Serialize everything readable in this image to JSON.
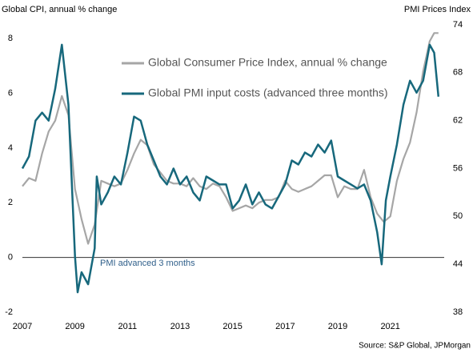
{
  "chart_data": {
    "type": "line",
    "y_label": "Global CPI, annual % change",
    "y2_label": "PMI Prices Index",
    "annotation": "PMI advanced 3 months",
    "source": "Source: S&P Global, JPMorgan",
    "xlim": [
      2007,
      2023.05
    ],
    "xticks": [
      2007,
      2009,
      2011,
      2013,
      2015,
      2017,
      2019,
      2021
    ],
    "ylim": [
      -2,
      8.5
    ],
    "yticks": [
      -2,
      0,
      2,
      4,
      6,
      8
    ],
    "y2lim": [
      38,
      74
    ],
    "y2ticks": [
      38,
      44,
      50,
      56,
      62,
      68,
      74
    ],
    "series": [
      {
        "name": "Global Consumer Price Index, annual % change",
        "color": "#a6a6a6",
        "axis": "y",
        "x": [
          2007,
          2007.25,
          2007.5,
          2007.75,
          2008,
          2008.25,
          2008.5,
          2008.75,
          2009,
          2009.25,
          2009.5,
          2009.75,
          2010,
          2010.25,
          2010.5,
          2010.75,
          2011,
          2011.25,
          2011.5,
          2011.75,
          2012,
          2012.25,
          2012.5,
          2012.75,
          2013,
          2013.25,
          2013.5,
          2013.75,
          2014,
          2014.25,
          2014.5,
          2014.75,
          2015,
          2015.25,
          2015.5,
          2015.75,
          2016,
          2016.25,
          2016.5,
          2016.75,
          2017,
          2017.25,
          2017.5,
          2017.75,
          2018,
          2018.25,
          2018.5,
          2018.75,
          2019,
          2019.25,
          2019.5,
          2019.75,
          2020,
          2020.25,
          2020.5,
          2020.75,
          2021,
          2021.25,
          2021.5,
          2021.75,
          2022,
          2022.25,
          2022.5,
          2022.67,
          2022.83
        ],
        "values": [
          2.6,
          2.9,
          2.8,
          3.8,
          4.6,
          5.0,
          5.9,
          5.2,
          2.5,
          1.4,
          0.5,
          1.2,
          2.8,
          2.7,
          2.6,
          2.7,
          3.2,
          3.8,
          4.3,
          4.1,
          3.4,
          3.1,
          2.8,
          2.7,
          2.7,
          2.6,
          2.9,
          2.6,
          2.5,
          2.7,
          2.6,
          2.2,
          1.7,
          1.8,
          1.9,
          1.8,
          2.0,
          2.1,
          2.1,
          2.2,
          2.8,
          2.5,
          2.4,
          2.5,
          2.6,
          2.8,
          3.0,
          3.0,
          2.2,
          2.6,
          2.5,
          2.5,
          3.2,
          2.2,
          1.6,
          1.3,
          1.5,
          2.8,
          3.6,
          4.2,
          5.3,
          6.8,
          7.9,
          8.2,
          8.2
        ]
      },
      {
        "name": "Global PMI input costs (advanced three months)",
        "color": "#17687c",
        "axis": "y2",
        "x": [
          2007,
          2007.25,
          2007.5,
          2007.75,
          2008,
          2008.25,
          2008.5,
          2008.75,
          2009,
          2009.1,
          2009.25,
          2009.5,
          2009.75,
          2009.83,
          2010,
          2010.25,
          2010.5,
          2010.75,
          2011,
          2011.25,
          2011.5,
          2011.75,
          2012,
          2012.25,
          2012.5,
          2012.75,
          2013,
          2013.25,
          2013.5,
          2013.75,
          2014,
          2014.25,
          2014.5,
          2014.75,
          2015,
          2015.25,
          2015.5,
          2015.75,
          2016,
          2016.25,
          2016.5,
          2016.75,
          2017,
          2017.25,
          2017.5,
          2017.75,
          2018,
          2018.25,
          2018.5,
          2018.75,
          2019,
          2019.25,
          2019.5,
          2019.75,
          2020,
          2020.25,
          2020.5,
          2020.67,
          2020.83,
          2021,
          2021.25,
          2021.5,
          2021.75,
          2022,
          2022.25,
          2022.5,
          2022.67,
          2022.83
        ],
        "values": [
          56,
          57.5,
          62,
          63,
          62,
          66,
          71.5,
          64,
          45,
          40.5,
          43,
          41.5,
          46,
          55,
          51.5,
          53,
          55,
          54,
          58,
          62.5,
          62,
          59,
          57,
          55,
          54,
          56,
          54,
          55,
          53,
          52,
          55,
          54.5,
          54,
          54,
          51,
          52,
          54,
          51.5,
          53,
          51.5,
          51,
          52.5,
          54,
          57,
          56.5,
          58,
          57.5,
          59,
          58,
          59.5,
          55,
          54.5,
          54,
          53.5,
          54,
          52,
          48,
          44,
          52,
          55,
          59,
          64,
          67,
          65.5,
          67,
          71.5,
          70.5,
          65
        ]
      }
    ]
  }
}
